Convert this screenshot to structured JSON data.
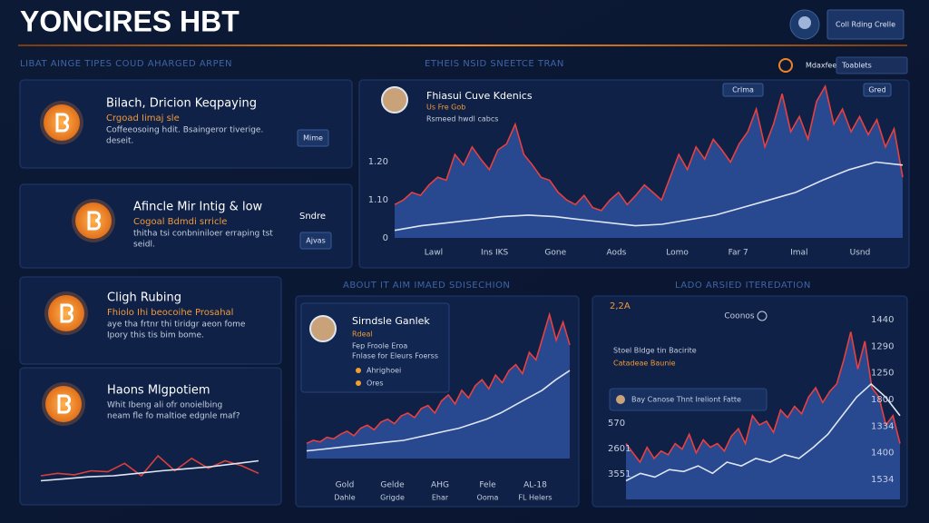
{
  "header": {
    "title": "YONCIRES HBT",
    "button": "Coll Rding Crelle"
  },
  "section_labels": [
    "LIBAT AINGE TIPES COUD AHARGED ARPEN",
    "ETHEIS NSID SNEETCE TRAN",
    "ABOUT IT AIM IMAED SDISECHION",
    "LADO ARSIED ITEREDATION"
  ],
  "toolbar": {
    "label": "Mdaxfeel",
    "select": "Toablets"
  },
  "cards": [
    {
      "title": "Bilach, Dricion Keqpaying",
      "highlight": "Crgoad Iimaj sle",
      "lines": [
        "Coffeeosoing hdit. Bsaingeror tiverige.",
        "deseit."
      ],
      "button": "Mime"
    },
    {
      "title": "Afincle Mir Intig & low",
      "highlight": "Cogoal Bdmdi srricle",
      "lines": [
        "thitha tsi conbniniloer erraping tst",
        "seidl."
      ],
      "side_label": "Sndre",
      "button": "Ajvas"
    },
    {
      "title": "Cligh Rubing",
      "highlight": "Fhiolo Ihi beocoihe Prosahal",
      "lines": [
        "aye tha frtnr thi tiridgr aeon fome",
        "Ipory this tis bim bome."
      ]
    },
    {
      "title": "Haons Mlgpotiem",
      "lines": [
        "Whit Ibeng ali ofr onoielbing",
        "neam fle fo maltioe edgnle maf?"
      ]
    }
  ],
  "charts": [
    {
      "title": "Fhiasui Cuve Kdenics",
      "subtitle": "Us Fre Gob",
      "caption": "Rsmeed hwdl cabcs",
      "buttons": [
        "Crlma",
        "Gred"
      ],
      "y_labels": [
        "1.20",
        "1.10",
        "0"
      ],
      "x_labels": [
        "Lawl",
        "Ins IKS",
        "Gone",
        "Aods",
        "Lomo",
        "Far 7",
        "Imal",
        "Usnd"
      ],
      "ylim": [
        0,
        100
      ],
      "series": [
        {
          "style": "area",
          "color": "#e8403f",
          "fill": "#2d4f9e",
          "values": [
            22,
            25,
            30,
            28,
            35,
            40,
            38,
            55,
            48,
            60,
            52,
            45,
            58,
            62,
            75,
            55,
            48,
            40,
            38,
            30,
            25,
            22,
            28,
            20,
            18,
            25,
            30,
            22,
            28,
            35,
            30,
            25,
            40,
            55,
            45,
            60,
            52,
            65,
            58,
            50,
            62,
            70,
            85,
            60,
            75,
            95,
            70,
            80,
            65,
            90,
            100,
            75,
            85,
            70,
            80,
            68,
            78,
            60,
            72,
            40
          ]
        },
        {
          "style": "line",
          "color": "#dfe6f3",
          "values": [
            5,
            8,
            10,
            12,
            14,
            15,
            14,
            12,
            10,
            8,
            9,
            12,
            15,
            20,
            25,
            30,
            38,
            45,
            50,
            48
          ]
        }
      ]
    },
    {
      "title": "Sirndsle Ganlek",
      "subtitle": "Rdeal",
      "lines": [
        "Fep Froole Eroa",
        "Fnlase for Eleurs Foerss"
      ],
      "items": [
        "Ahrighoei",
        "Ores"
      ],
      "x_labels": [
        "Gold",
        "Gelde",
        "AHG",
        "Fele",
        "AL-18"
      ],
      "x_labels_2": [
        "Dahle",
        "Grigde",
        "Ehar",
        "Ooma",
        "FL Helers"
      ],
      "ylim": [
        0,
        100
      ],
      "series": [
        {
          "style": "area",
          "color": "#e8403f",
          "fill": "#2d4f9e",
          "values": [
            10,
            12,
            11,
            14,
            13,
            16,
            18,
            15,
            20,
            22,
            19,
            24,
            26,
            23,
            28,
            30,
            27,
            33,
            35,
            30,
            38,
            42,
            36,
            45,
            40,
            48,
            52,
            46,
            55,
            50,
            58,
            62,
            56,
            70,
            65,
            80,
            95,
            78,
            90,
            75
          ]
        },
        {
          "style": "line",
          "color": "#dfe6f3",
          "values": [
            5,
            6,
            7,
            8,
            9,
            10,
            11,
            12,
            14,
            16,
            18,
            20,
            23,
            26,
            30,
            35,
            40,
            45,
            52,
            58
          ]
        }
      ]
    },
    {
      "corner": "2,2A",
      "label": "Coonos",
      "legend": [
        "Stoel Bldge tin Bacirite",
        "Catadeae Baunie"
      ],
      "note": "Bay Canose Thnt Ireliont Fatte",
      "left_labels": [
        "570",
        "2601",
        "3551"
      ],
      "right_labels": [
        "1440",
        "1290",
        "1250",
        "1800",
        "1334",
        "1400",
        "1534"
      ],
      "ylim": [
        0,
        100
      ],
      "series": [
        {
          "style": "area",
          "color": "#e8403f",
          "fill": "#2d4f9e",
          "values": [
            30,
            25,
            20,
            28,
            22,
            26,
            24,
            30,
            27,
            35,
            25,
            32,
            28,
            30,
            26,
            34,
            38,
            30,
            45,
            40,
            42,
            36,
            48,
            44,
            50,
            46,
            55,
            60,
            52,
            58,
            62,
            75,
            90,
            70,
            85,
            60,
            55,
            40,
            45,
            30
          ]
        },
        {
          "style": "line",
          "color": "#dfe6f3",
          "values": [
            10,
            14,
            12,
            16,
            15,
            18,
            14,
            20,
            18,
            22,
            20,
            24,
            22,
            28,
            35,
            45,
            55,
            62,
            55,
            45
          ]
        }
      ]
    },
    {
      "ylim": [
        0,
        100
      ],
      "series": [
        {
          "style": "line",
          "color": "#d8403c",
          "values": [
            20,
            25,
            22,
            30,
            28,
            45,
            20,
            60,
            30,
            55,
            35,
            50,
            40,
            25
          ]
        },
        {
          "style": "line",
          "color": "#dfe6f3",
          "values": [
            10,
            14,
            18,
            20,
            25,
            30,
            34,
            38,
            44,
            50
          ]
        }
      ]
    }
  ]
}
